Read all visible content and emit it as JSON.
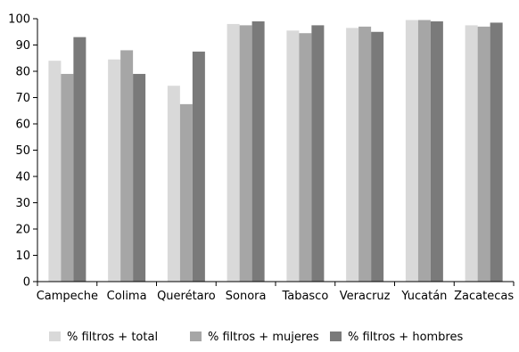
{
  "chart_data": {
    "type": "bar",
    "title": "",
    "xlabel": "",
    "ylabel": "",
    "ylim": [
      0,
      100
    ],
    "yticks": [
      0,
      10,
      20,
      30,
      40,
      50,
      60,
      70,
      80,
      90,
      100
    ],
    "grid": false,
    "legend_position": "bottom",
    "categories": [
      "Campeche",
      "Colima",
      "Querétaro",
      "Sonora",
      "Tabasco",
      "Veracruz",
      "Yucatán",
      "Zacatecas"
    ],
    "series": [
      {
        "name": "% filtros + total",
        "color": "#d9d9d9",
        "values": [
          84,
          84.5,
          74.5,
          98,
          95.5,
          96.5,
          99.5,
          97.5
        ]
      },
      {
        "name": "% filtros + mujeres",
        "color": "#a6a6a6",
        "values": [
          79,
          88,
          67.5,
          97.5,
          94.5,
          97,
          99.5,
          97
        ]
      },
      {
        "name": "% filtros + hombres",
        "color": "#7a7a7a",
        "values": [
          93,
          79,
          87.5,
          99,
          97.5,
          95,
          99,
          98.5
        ]
      }
    ]
  }
}
